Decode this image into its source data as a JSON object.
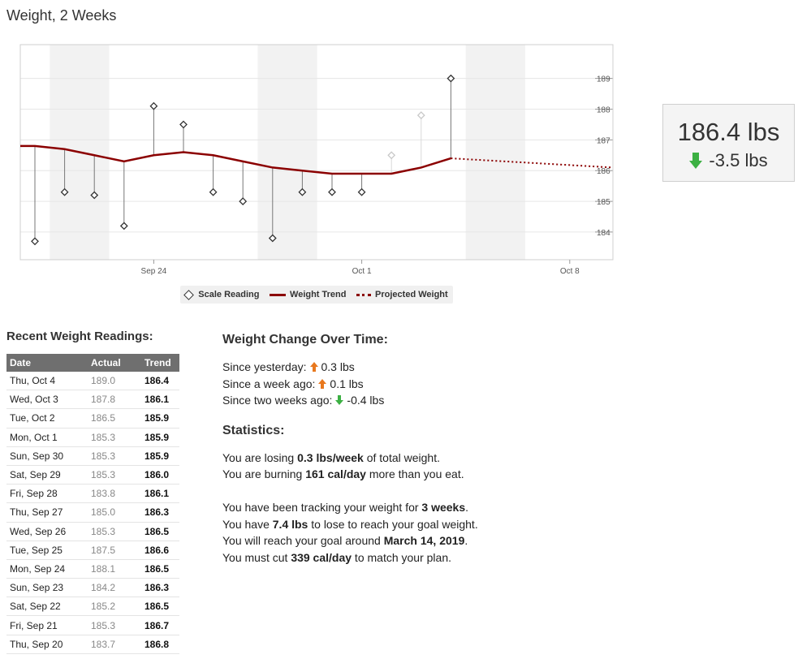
{
  "page_title": "Weight, 2 Weeks",
  "colors": {
    "trend": "#8b0000",
    "up": "#e8781e",
    "down": "#3cb043",
    "band": "#f2f2f2",
    "grid": "#e6e6e6"
  },
  "chart_data": {
    "type": "line",
    "x_start": "Sep 20",
    "x_ticks": [
      {
        "day": 4,
        "label": "Sep 24"
      },
      {
        "day": 11,
        "label": "Oct 1"
      },
      {
        "day": 18,
        "label": "Oct 8"
      }
    ],
    "ylim": [
      183.1,
      190.1
    ],
    "y_ticks": [
      184,
      185,
      186,
      187,
      188,
      189
    ],
    "weekend_bands": [
      [
        1,
        3
      ],
      [
        8,
        10
      ],
      [
        15,
        17
      ]
    ],
    "series": [
      {
        "name": "Scale Reading",
        "kind": "diamond",
        "x": [
          0,
          1,
          2,
          3,
          4,
          5,
          6,
          7,
          8,
          9,
          10,
          11,
          12,
          13,
          14
        ],
        "values": [
          183.7,
          185.3,
          185.2,
          184.2,
          188.1,
          187.5,
          185.3,
          185.0,
          183.8,
          185.3,
          185.3,
          185.3,
          186.5,
          187.8,
          189.0
        ],
        "faded": [
          12,
          13
        ]
      },
      {
        "name": "Weight Trend",
        "kind": "line",
        "x": [
          -0.5,
          0,
          1,
          2,
          3,
          4,
          5,
          6,
          7,
          8,
          9,
          10,
          11,
          12,
          13,
          14
        ],
        "values": [
          186.8,
          186.8,
          186.7,
          186.5,
          186.3,
          186.5,
          186.6,
          186.5,
          186.3,
          186.1,
          186.0,
          185.9,
          185.9,
          185.9,
          186.1,
          186.4
        ]
      },
      {
        "name": "Projected Weight",
        "kind": "dotted",
        "x": [
          14,
          19.5
        ],
        "values": [
          186.4,
          186.1
        ]
      }
    ]
  },
  "current": {
    "value": "186.4 lbs",
    "change": "-3.5 lbs"
  },
  "readings": {
    "title": "Recent Weight Readings:",
    "columns": [
      "Date",
      "Actual",
      "Trend"
    ],
    "rows": [
      [
        "Thu, Oct 4",
        "189.0",
        "186.4"
      ],
      [
        "Wed, Oct 3",
        "187.8",
        "186.1"
      ],
      [
        "Tue, Oct 2",
        "186.5",
        "185.9"
      ],
      [
        "Mon, Oct 1",
        "185.3",
        "185.9"
      ],
      [
        "Sun, Sep 30",
        "185.3",
        "185.9"
      ],
      [
        "Sat, Sep 29",
        "185.3",
        "186.0"
      ],
      [
        "Fri, Sep 28",
        "183.8",
        "186.1"
      ],
      [
        "Thu, Sep 27",
        "185.0",
        "186.3"
      ],
      [
        "Wed, Sep 26",
        "185.3",
        "186.5"
      ],
      [
        "Tue, Sep 25",
        "187.5",
        "186.6"
      ],
      [
        "Mon, Sep 24",
        "188.1",
        "186.5"
      ],
      [
        "Sun, Sep 23",
        "184.2",
        "186.3"
      ],
      [
        "Sat, Sep 22",
        "185.2",
        "186.5"
      ],
      [
        "Fri, Sep 21",
        "185.3",
        "186.7"
      ],
      [
        "Thu, Sep 20",
        "183.7",
        "186.8"
      ]
    ]
  },
  "change": {
    "title": "Weight Change Over Time:",
    "items": [
      {
        "label": "Since yesterday:",
        "dir": "up",
        "value": "0.3 lbs"
      },
      {
        "label": "Since a week ago:",
        "dir": "up",
        "value": "0.1 lbs"
      },
      {
        "label": "Since two weeks ago:",
        "dir": "down",
        "value": "-0.4 lbs"
      }
    ]
  },
  "stats": {
    "title": "Statistics:",
    "lose_pre": "You are losing ",
    "lose_val": "0.3 lbs/week",
    "lose_post": " of total weight.",
    "burn_pre": "You are burning ",
    "burn_val": "161 cal/day",
    "burn_post": " more than you eat.",
    "track_pre": "You have been tracking your weight for ",
    "track_val": "3 weeks",
    "track_post": ".",
    "goal_pre": "You have ",
    "goal_val": "7.4 lbs",
    "goal_post": " to lose to reach your goal weight.",
    "reach_pre": "You will reach your goal around ",
    "reach_val": "March 14, 2019",
    "reach_post": ".",
    "cut_pre": "You must cut ",
    "cut_val": "339 cal/day",
    "cut_post": " to match your plan."
  }
}
